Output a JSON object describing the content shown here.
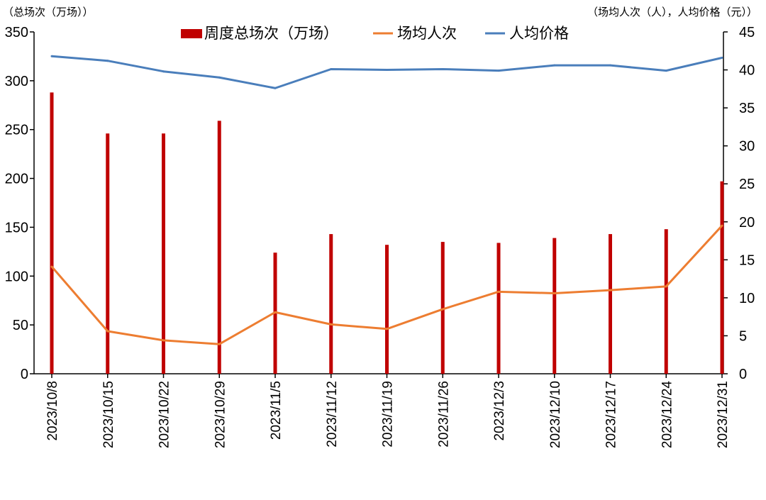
{
  "colors": {
    "bar": "#c00000",
    "per_show": "#ed7d31",
    "price": "#4a7ebb"
  },
  "chart_data": {
    "type": "bar",
    "left_axis_label": "（总场次（万场））",
    "right_axis_label": "（场均人次（人），人均价格（元））",
    "categories": [
      "2023/10/8",
      "2023/10/15",
      "2023/10/22",
      "2023/10/29",
      "2023/11/5",
      "2023/11/12",
      "2023/11/19",
      "2023/11/26",
      "2023/12/3",
      "2023/12/10",
      "2023/12/17",
      "2023/12/24",
      "2023/12/31"
    ],
    "left_axis": {
      "min": 0,
      "max": 350,
      "ticks": [
        0,
        50,
        100,
        150,
        200,
        250,
        300,
        350
      ]
    },
    "right_axis": {
      "min": 0,
      "max": 45,
      "ticks": [
        0,
        5,
        10,
        15,
        20,
        25,
        30,
        35,
        40,
        45
      ]
    },
    "grid": false,
    "legend_position": "top",
    "series": [
      {
        "name": "周度总场次（万场）",
        "type": "bar",
        "axis": "left",
        "values": [
          288,
          246,
          246,
          259,
          124,
          143,
          132,
          135,
          134,
          139,
          143,
          148,
          197
        ]
      },
      {
        "name": "场均人次",
        "type": "line",
        "axis": "right",
        "values": [
          14.1,
          5.6,
          4.4,
          3.9,
          8.1,
          6.5,
          5.9,
          8.5,
          10.8,
          10.6,
          11.0,
          11.5,
          19.5
        ]
      },
      {
        "name": "人均价格",
        "type": "line",
        "axis": "right",
        "values": [
          41.8,
          41.2,
          39.8,
          39.0,
          37.6,
          40.1,
          40.0,
          40.1,
          39.9,
          40.6,
          40.6,
          39.9,
          41.6
        ]
      }
    ]
  }
}
